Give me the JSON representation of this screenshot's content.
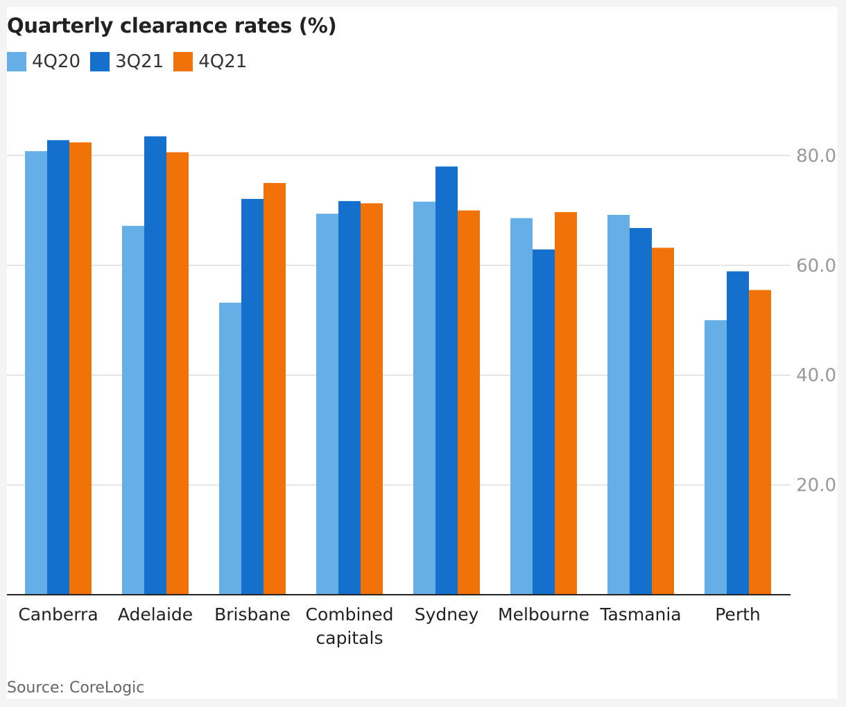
{
  "title": "Quarterly clearance rates (%)",
  "source": "Source: CoreLogic",
  "colors": {
    "4Q20": "#66aee6",
    "3Q21": "#1470cc",
    "4Q21": "#f07209"
  },
  "chart_data": {
    "type": "bar",
    "title": "Quarterly clearance rates (%)",
    "xlabel": "",
    "ylabel": "",
    "ylim": [
      0,
      100
    ],
    "yticks": [
      20,
      40,
      60,
      80
    ],
    "ytick_labels": [
      "20.0",
      "40.0",
      "60.0",
      "80.0"
    ],
    "grid": true,
    "legend_position": "top-left",
    "categories": [
      [
        "Canberra"
      ],
      [
        "Adelaide"
      ],
      [
        "Brisbane"
      ],
      [
        "Combined",
        "capitals"
      ],
      [
        "Sydney"
      ],
      [
        "Melbourne"
      ],
      [
        "Tasmania"
      ],
      [
        "Perth"
      ]
    ],
    "series": [
      {
        "name": "4Q20",
        "color": "#66aee6",
        "values": [
          80.8,
          67.2,
          53.2,
          69.4,
          71.6,
          68.6,
          69.2,
          50.0
        ]
      },
      {
        "name": "3Q21",
        "color": "#1470cc",
        "values": [
          82.8,
          83.5,
          72.1,
          71.7,
          78.0,
          62.9,
          66.8,
          58.9
        ]
      },
      {
        "name": "4Q21",
        "color": "#f07209",
        "values": [
          82.4,
          80.6,
          75.0,
          71.3,
          70.0,
          69.7,
          63.2,
          55.5
        ]
      }
    ]
  }
}
